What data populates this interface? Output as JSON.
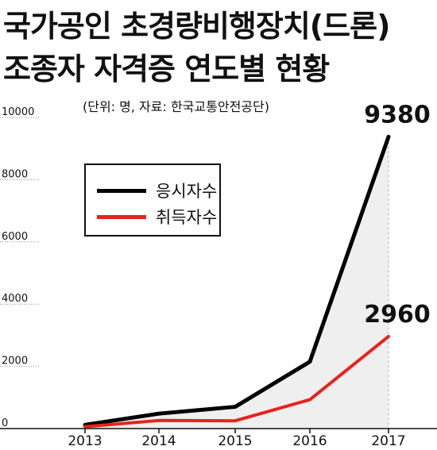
{
  "title": {
    "line1": "국가공인 초경량비행장치(드론)",
    "line2": "조종자 자격증 연도별 현황"
  },
  "unit_note": "(단위: 명, 자료: 한국교통안전공단)",
  "chart_data": {
    "type": "line",
    "title": "국가공인 초경량비행장치(드론) 조종자 자격증 연도별 현황",
    "categories": [
      "2013",
      "2014",
      "2015",
      "2016",
      "2017"
    ],
    "series": [
      {
        "name": "응시자수",
        "values": [
          120,
          480,
          700,
          2150,
          9380
        ],
        "color": "#000000"
      },
      {
        "name": "취득자수",
        "values": [
          60,
          260,
          250,
          930,
          2960
        ],
        "color": "#e8231c"
      }
    ],
    "y_ticks": [
      "10000",
      "8000",
      "6000",
      "4000",
      "2000",
      "0"
    ],
    "ylim": [
      0,
      10000
    ],
    "annotations": [
      "9380",
      "2960"
    ],
    "grid": false,
    "legend_position": "upper-left"
  }
}
